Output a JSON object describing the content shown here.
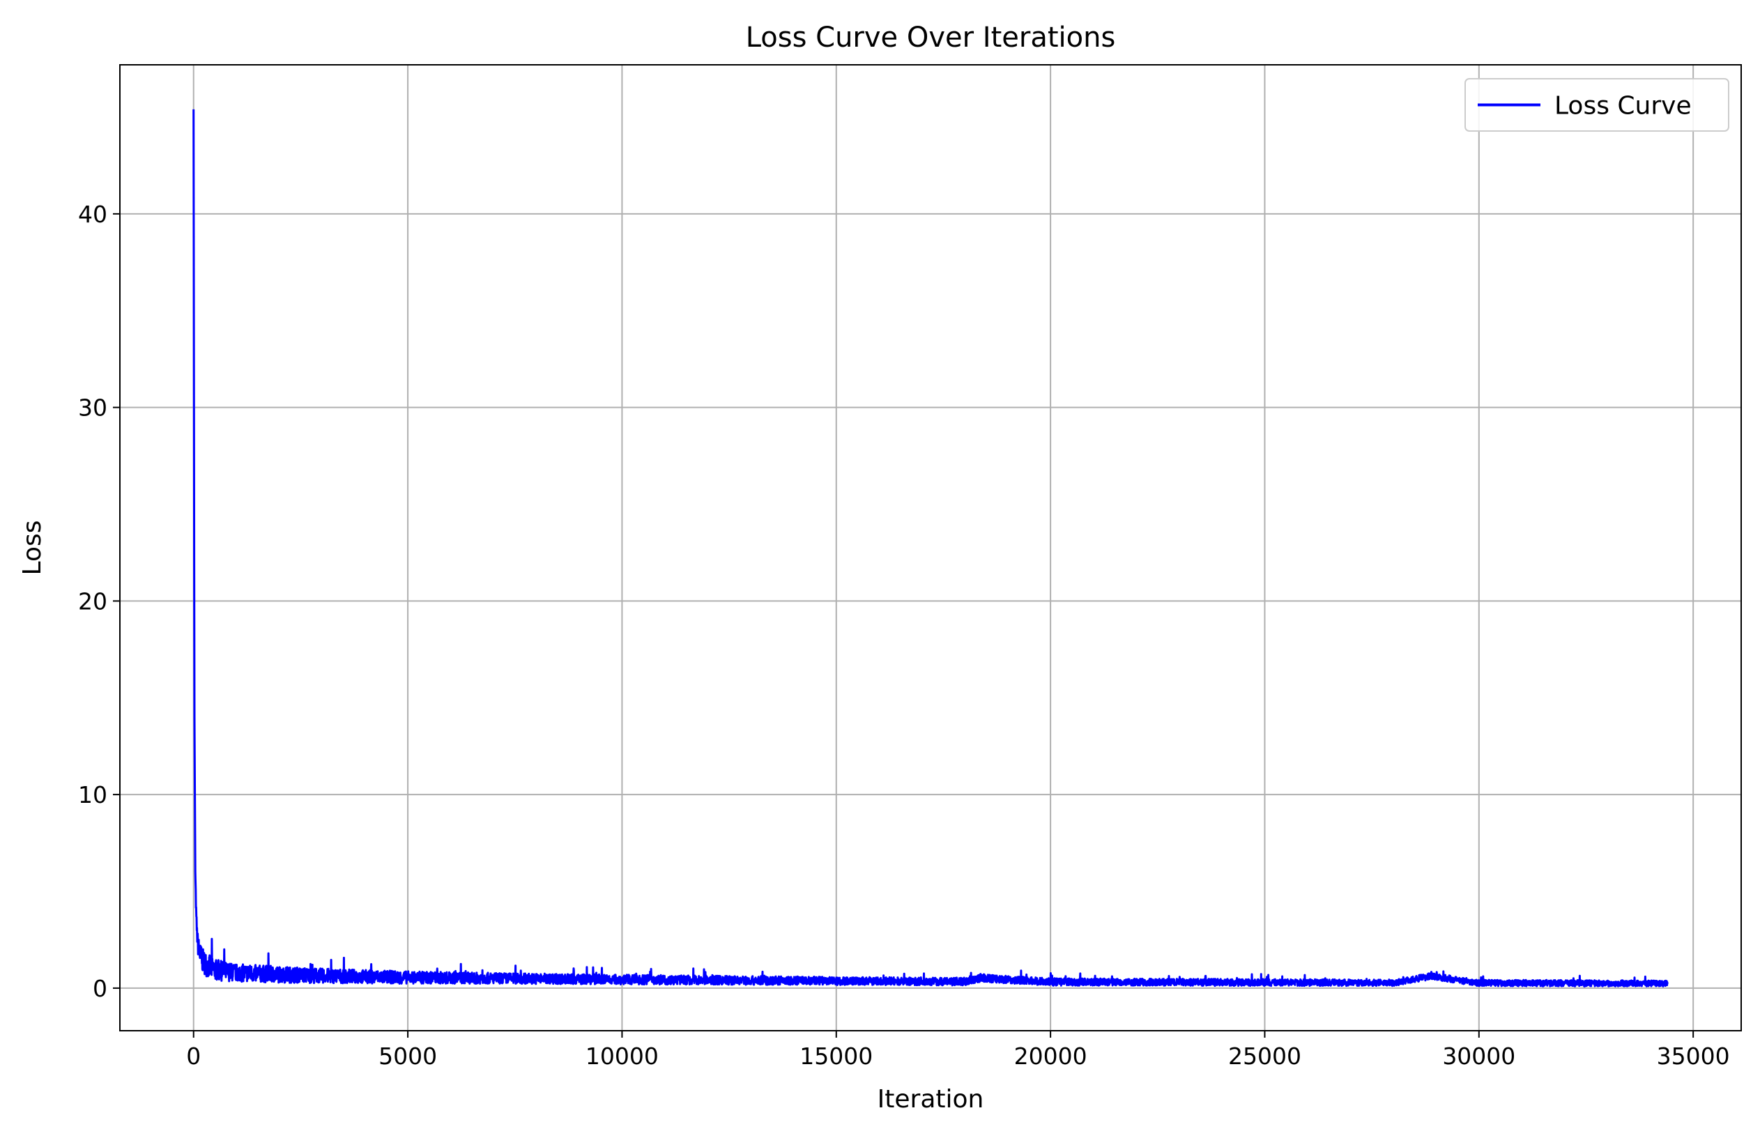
{
  "chart_data": {
    "type": "line",
    "title": "Loss Curve Over Iterations",
    "xlabel": "Iteration",
    "ylabel": "Loss",
    "xlim": [
      -1720,
      36120
    ],
    "ylim": [
      -2.2,
      47.7
    ],
    "xticks": [
      0,
      5000,
      10000,
      15000,
      20000,
      25000,
      30000,
      35000
    ],
    "xtick_labels": [
      "0",
      "5000",
      "10000",
      "15000",
      "20000",
      "25000",
      "30000",
      "35000"
    ],
    "yticks": [
      0,
      10,
      20,
      30,
      40
    ],
    "ytick_labels": [
      "0",
      "10",
      "20",
      "30",
      "40"
    ],
    "grid": true,
    "legend_position": "top-right",
    "series": [
      {
        "name": "Loss Curve",
        "color": "#0000ff",
        "x": [
          0,
          10,
          20,
          40,
          60,
          80,
          100,
          150,
          200,
          300,
          400,
          500,
          700,
          1000,
          1500,
          2000,
          3000,
          4000,
          5000,
          6000,
          7000,
          8000,
          9000,
          10000,
          12000,
          14000,
          16000,
          18000,
          18400,
          20000,
          22000,
          24000,
          26000,
          28000,
          28900,
          30000,
          32000,
          34000,
          34400
        ],
        "y": [
          45.4,
          30.0,
          14.0,
          6.0,
          3.8,
          2.8,
          2.2,
          1.7,
          1.4,
          1.15,
          1.0,
          0.9,
          0.82,
          0.75,
          0.7,
          0.66,
          0.6,
          0.56,
          0.52,
          0.5,
          0.48,
          0.46,
          0.44,
          0.42,
          0.39,
          0.36,
          0.34,
          0.32,
          0.5,
          0.3,
          0.29,
          0.28,
          0.27,
          0.26,
          0.6,
          0.25,
          0.24,
          0.23,
          0.22
        ],
        "noise_amplitude": [
          0,
          0,
          0,
          0,
          0.4,
          0.4,
          0.5,
          0.6,
          0.6,
          0.6,
          0.6,
          0.55,
          0.5,
          0.45,
          0.45,
          0.42,
          0.38,
          0.35,
          0.32,
          0.3,
          0.28,
          0.27,
          0.26,
          0.25,
          0.23,
          0.22,
          0.2,
          0.2,
          0.2,
          0.19,
          0.18,
          0.18,
          0.17,
          0.17,
          0.17,
          0.16,
          0.16,
          0.15,
          0.15
        ]
      }
    ]
  }
}
